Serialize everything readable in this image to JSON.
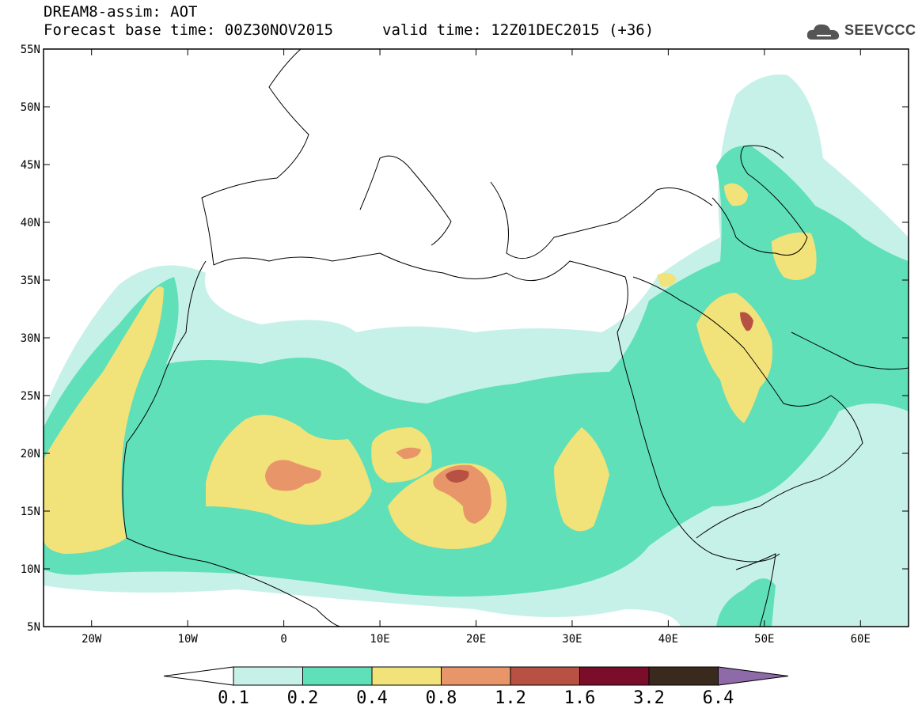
{
  "header": {
    "title": "DREAM8-assim: AOT",
    "base_time": "Forecast base time: 00Z30NOV2015",
    "valid_time": "valid time: 12Z01DEC2015 (+36)"
  },
  "logo": {
    "text": "SEEVCCC",
    "icon": "cloud-icon"
  },
  "map": {
    "extent": {
      "lon_min": -25,
      "lon_max": 65,
      "lat_min": 5,
      "lat_max": 55
    },
    "lat_ticks": [
      {
        "value": 55,
        "label": "55N"
      },
      {
        "value": 50,
        "label": "50N"
      },
      {
        "value": 45,
        "label": "45N"
      },
      {
        "value": 40,
        "label": "40N"
      },
      {
        "value": 35,
        "label": "35N"
      },
      {
        "value": 30,
        "label": "30N"
      },
      {
        "value": 25,
        "label": "25N"
      },
      {
        "value": 20,
        "label": "20N"
      },
      {
        "value": 15,
        "label": "15N"
      },
      {
        "value": 10,
        "label": "10N"
      },
      {
        "value": 5,
        "label": "5N"
      }
    ],
    "lon_ticks": [
      {
        "value": -20,
        "label": "20W"
      },
      {
        "value": -10,
        "label": "10W"
      },
      {
        "value": 0,
        "label": "0"
      },
      {
        "value": 10,
        "label": "10E"
      },
      {
        "value": 20,
        "label": "20E"
      },
      {
        "value": 30,
        "label": "30E"
      },
      {
        "value": 40,
        "label": "40E"
      },
      {
        "value": 50,
        "label": "50E"
      },
      {
        "value": 60,
        "label": "60E"
      }
    ]
  },
  "colorbar": {
    "colors": [
      "#ffffff",
      "#c6f1e8",
      "#5fe0b9",
      "#f2e27a",
      "#e9956a",
      "#b65143",
      "#7a0d2a",
      "#3a2a1e",
      "#8e6ba8"
    ],
    "labels": [
      "0.1",
      "0.2",
      "0.4",
      "0.8",
      "1.2",
      "1.6",
      "3.2",
      "6.4"
    ]
  }
}
